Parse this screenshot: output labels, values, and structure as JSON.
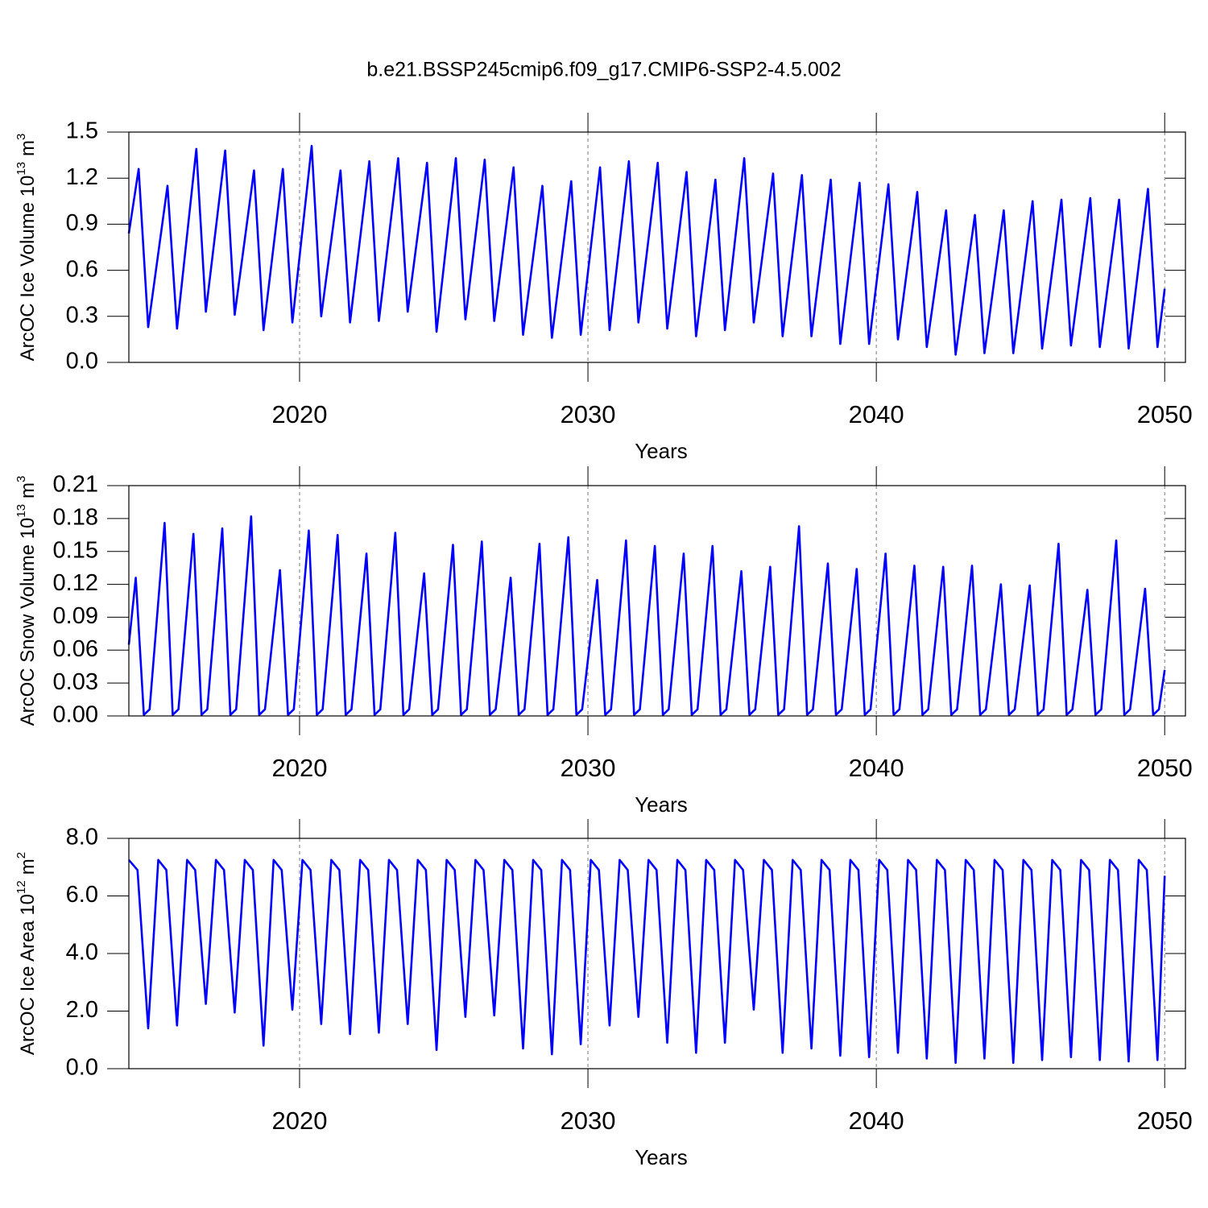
{
  "title": "b.e21.BSSP245cmip6.f09_g17.CMIP6-SSP2-4.5.002",
  "chart_data": [
    {
      "type": "line",
      "xlabel": "Years",
      "ylabel": [
        "ArcOC Ice Volume 10",
        "13",
        "m",
        "3"
      ],
      "xlim": [
        2014.08,
        2050.72
      ],
      "xticks": [
        2020,
        2030,
        2040,
        2050
      ],
      "ylim": [
        0,
        1.5
      ],
      "yticks": [
        {
          "value": 0,
          "label": "0.0"
        },
        0.3,
        0.6,
        0.9,
        1.2,
        1.5
      ],
      "grid": true,
      "x": [
        2014.08,
        2014.42,
        2014.75,
        2015.42,
        2015.75,
        2016.42,
        2016.75,
        2017.42,
        2017.75,
        2018.42,
        2018.75,
        2019.42,
        2019.75,
        2020.42,
        2020.75,
        2021.42,
        2021.75,
        2022.42,
        2022.75,
        2023.42,
        2023.75,
        2024.42,
        2024.75,
        2025.42,
        2025.75,
        2026.42,
        2026.75,
        2027.42,
        2027.75,
        2028.42,
        2028.75,
        2029.42,
        2029.75,
        2030.42,
        2030.75,
        2031.42,
        2031.75,
        2032.42,
        2032.75,
        2033.42,
        2033.75,
        2034.42,
        2034.75,
        2035.42,
        2035.75,
        2036.42,
        2036.75,
        2037.42,
        2037.75,
        2038.42,
        2038.75,
        2039.42,
        2039.75,
        2040.42,
        2040.75,
        2041.42,
        2041.75,
        2042.42,
        2042.75,
        2043.42,
        2043.75,
        2044.42,
        2044.75,
        2045.42,
        2045.75,
        2046.42,
        2046.75,
        2047.42,
        2047.75,
        2048.42,
        2048.75,
        2049.42,
        2049.75,
        2050.0
      ],
      "series": [
        {
          "color": "#0000ff",
          "values": [
            0.84,
            1.26,
            0.23,
            1.15,
            0.22,
            1.39,
            0.33,
            1.38,
            0.31,
            1.25,
            0.21,
            1.26,
            0.26,
            1.41,
            0.3,
            1.25,
            0.26,
            1.31,
            0.27,
            1.33,
            0.33,
            1.3,
            0.2,
            1.33,
            0.28,
            1.32,
            0.27,
            1.27,
            0.18,
            1.15,
            0.16,
            1.18,
            0.18,
            1.27,
            0.21,
            1.31,
            0.26,
            1.3,
            0.22,
            1.24,
            0.17,
            1.19,
            0.21,
            1.33,
            0.26,
            1.23,
            0.17,
            1.22,
            0.17,
            1.19,
            0.12,
            1.17,
            0.12,
            1.16,
            0.15,
            1.11,
            0.1,
            0.99,
            0.05,
            0.96,
            0.06,
            0.99,
            0.06,
            1.05,
            0.09,
            1.06,
            0.11,
            1.07,
            0.1,
            1.06,
            0.09,
            1.13,
            0.1,
            0.48
          ]
        }
      ]
    },
    {
      "type": "line",
      "xlabel": "Years",
      "ylabel": [
        "ArcOC Snow Volume 10",
        "13",
        "m",
        "3"
      ],
      "xlim": [
        2014.08,
        2050.72
      ],
      "xticks": [
        2020,
        2030,
        2040,
        2050
      ],
      "ylim": [
        0,
        0.21
      ],
      "yticks": [
        {
          "value": 0,
          "label": "0.00"
        },
        0.03,
        0.06,
        0.09,
        0.12,
        0.15,
        0.18,
        0.21
      ],
      "grid": true,
      "x": [
        2014.08,
        2014.32,
        2014.6,
        2014.8,
        2015.32,
        2015.6,
        2015.8,
        2016.32,
        2016.6,
        2016.8,
        2017.32,
        2017.6,
        2017.8,
        2018.32,
        2018.6,
        2018.8,
        2019.32,
        2019.6,
        2019.8,
        2020.32,
        2020.6,
        2020.8,
        2021.32,
        2021.6,
        2021.8,
        2022.32,
        2022.6,
        2022.8,
        2023.32,
        2023.6,
        2023.8,
        2024.32,
        2024.6,
        2024.8,
        2025.32,
        2025.6,
        2025.8,
        2026.32,
        2026.6,
        2026.8,
        2027.32,
        2027.6,
        2027.8,
        2028.32,
        2028.6,
        2028.8,
        2029.32,
        2029.6,
        2029.8,
        2030.32,
        2030.6,
        2030.8,
        2031.32,
        2031.6,
        2031.8,
        2032.32,
        2032.6,
        2032.8,
        2033.32,
        2033.6,
        2033.8,
        2034.32,
        2034.6,
        2034.8,
        2035.32,
        2035.6,
        2035.8,
        2036.32,
        2036.6,
        2036.8,
        2037.32,
        2037.6,
        2037.8,
        2038.32,
        2038.6,
        2038.8,
        2039.32,
        2039.6,
        2039.8,
        2040.32,
        2040.6,
        2040.8,
        2041.32,
        2041.6,
        2041.8,
        2042.32,
        2042.6,
        2042.8,
        2043.32,
        2043.6,
        2043.8,
        2044.32,
        2044.6,
        2044.8,
        2045.32,
        2045.6,
        2045.8,
        2046.32,
        2046.6,
        2046.8,
        2047.32,
        2047.6,
        2047.8,
        2048.32,
        2048.6,
        2048.8,
        2049.32,
        2049.6,
        2049.8,
        2050.0
      ],
      "series": [
        {
          "color": "#0000ff",
          "values": [
            0.065,
            0.126,
            0.001,
            0.006,
            0.176,
            0.001,
            0.006,
            0.166,
            0.001,
            0.006,
            0.171,
            0.001,
            0.006,
            0.182,
            0.001,
            0.006,
            0.133,
            0.001,
            0.006,
            0.169,
            0.001,
            0.006,
            0.165,
            0.001,
            0.006,
            0.148,
            0.001,
            0.006,
            0.167,
            0.001,
            0.006,
            0.13,
            0.001,
            0.006,
            0.156,
            0.001,
            0.006,
            0.159,
            0.001,
            0.006,
            0.126,
            0.001,
            0.006,
            0.157,
            0.001,
            0.006,
            0.163,
            0.001,
            0.006,
            0.124,
            0.001,
            0.006,
            0.16,
            0.001,
            0.006,
            0.155,
            0.001,
            0.006,
            0.148,
            0.001,
            0.006,
            0.155,
            0.001,
            0.006,
            0.132,
            0.001,
            0.006,
            0.136,
            0.001,
            0.006,
            0.173,
            0.001,
            0.006,
            0.139,
            0.001,
            0.006,
            0.134,
            0.001,
            0.006,
            0.148,
            0.001,
            0.006,
            0.137,
            0.001,
            0.006,
            0.136,
            0.001,
            0.006,
            0.137,
            0.001,
            0.006,
            0.12,
            0.001,
            0.006,
            0.119,
            0.001,
            0.006,
            0.157,
            0.001,
            0.006,
            0.115,
            0.001,
            0.006,
            0.16,
            0.001,
            0.006,
            0.116,
            0.001,
            0.006,
            0.042
          ]
        }
      ]
    },
    {
      "type": "line",
      "xlabel": "Years",
      "ylabel": [
        "ArcOC Ice Area 10",
        "12",
        "m",
        "2"
      ],
      "xlim": [
        2014.08,
        2050.72
      ],
      "xticks": [
        2020,
        2030,
        2040,
        2050
      ],
      "ylim": [
        0,
        8
      ],
      "yticks": [
        {
          "value": 0,
          "label": "0.0"
        },
        {
          "value": 2,
          "label": "2.0"
        },
        {
          "value": 4,
          "label": "4.0"
        },
        {
          "value": 6,
          "label": "6.0"
        },
        {
          "value": 8,
          "label": "8.0"
        }
      ],
      "grid": true,
      "x": [
        2014.08,
        2014.38,
        2014.75,
        2015.1,
        2015.38,
        2015.75,
        2016.1,
        2016.38,
        2016.75,
        2017.1,
        2017.38,
        2017.75,
        2018.1,
        2018.38,
        2018.75,
        2019.1,
        2019.38,
        2019.75,
        2020.1,
        2020.38,
        2020.75,
        2021.1,
        2021.38,
        2021.75,
        2022.1,
        2022.38,
        2022.75,
        2023.1,
        2023.38,
        2023.75,
        2024.1,
        2024.38,
        2024.75,
        2025.1,
        2025.38,
        2025.75,
        2026.1,
        2026.38,
        2026.75,
        2027.1,
        2027.38,
        2027.75,
        2028.1,
        2028.38,
        2028.75,
        2029.1,
        2029.38,
        2029.75,
        2030.1,
        2030.38,
        2030.75,
        2031.1,
        2031.38,
        2031.75,
        2032.1,
        2032.38,
        2032.75,
        2033.1,
        2033.38,
        2033.75,
        2034.1,
        2034.38,
        2034.75,
        2035.1,
        2035.38,
        2035.75,
        2036.1,
        2036.38,
        2036.75,
        2037.1,
        2037.38,
        2037.75,
        2038.1,
        2038.38,
        2038.75,
        2039.1,
        2039.38,
        2039.75,
        2040.1,
        2040.38,
        2040.75,
        2041.1,
        2041.38,
        2041.75,
        2042.1,
        2042.38,
        2042.75,
        2043.1,
        2043.38,
        2043.75,
        2044.1,
        2044.38,
        2044.75,
        2045.1,
        2045.38,
        2045.75,
        2046.1,
        2046.38,
        2046.75,
        2047.1,
        2047.38,
        2047.75,
        2048.1,
        2048.38,
        2048.75,
        2049.1,
        2049.38,
        2049.75,
        2050.0
      ],
      "series": [
        {
          "color": "#0000ff",
          "values": [
            7.25,
            6.9,
            1.4,
            7.25,
            6.9,
            1.5,
            7.25,
            6.9,
            2.25,
            7.25,
            6.9,
            1.95,
            7.25,
            6.9,
            0.8,
            7.25,
            6.9,
            2.05,
            7.25,
            6.9,
            1.55,
            7.25,
            6.9,
            1.2,
            7.25,
            6.9,
            1.25,
            7.25,
            6.9,
            1.55,
            7.25,
            6.9,
            0.65,
            7.25,
            6.9,
            1.8,
            7.25,
            6.9,
            1.85,
            7.25,
            6.9,
            0.7,
            7.25,
            6.9,
            0.5,
            7.25,
            6.9,
            0.85,
            7.25,
            6.9,
            1.5,
            7.25,
            6.9,
            1.8,
            7.25,
            6.9,
            0.9,
            7.25,
            6.9,
            0.55,
            7.25,
            6.9,
            0.9,
            7.25,
            6.9,
            2.05,
            7.25,
            6.9,
            0.55,
            7.25,
            6.9,
            0.7,
            7.25,
            6.9,
            0.45,
            7.25,
            6.9,
            0.4,
            7.25,
            6.9,
            0.55,
            7.25,
            6.9,
            0.35,
            7.25,
            6.9,
            0.2,
            7.25,
            6.9,
            0.35,
            7.25,
            6.9,
            0.2,
            7.25,
            6.9,
            0.3,
            7.25,
            6.9,
            0.4,
            7.25,
            6.9,
            0.3,
            7.25,
            6.9,
            0.25,
            7.25,
            6.9,
            0.3,
            6.7
          ]
        }
      ]
    }
  ]
}
